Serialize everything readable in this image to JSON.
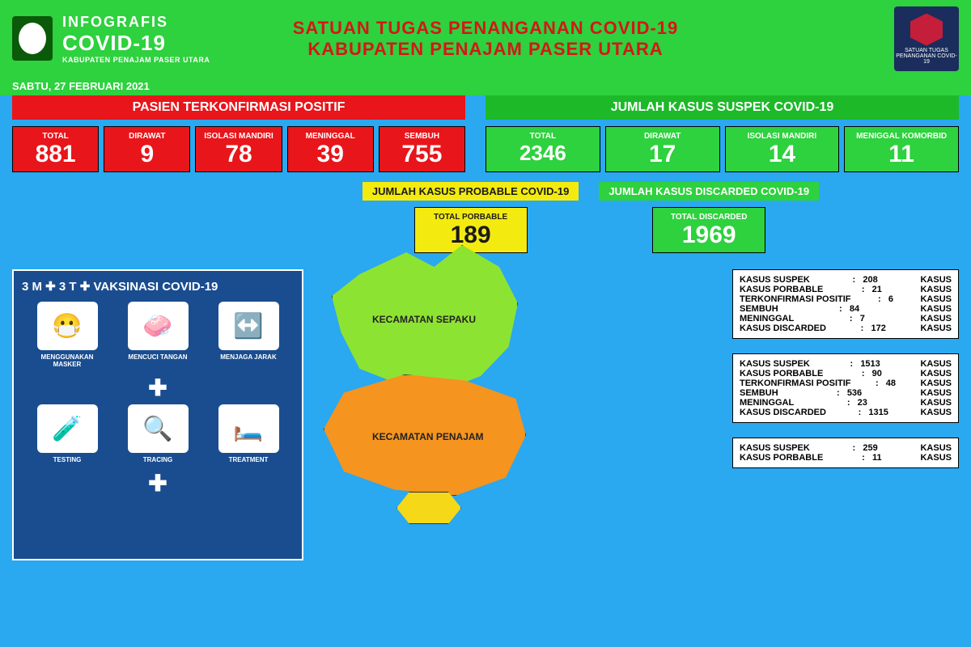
{
  "header": {
    "logo_title1": "INFOGRAFIS",
    "logo_title2": "COVID-19",
    "logo_sub": "KABUPATEN PENAJAM PASER UTARA",
    "center_l1": "SATUAN TUGAS PENANGANAN COVID-19",
    "center_l2": "KABUPATEN PENAJAM PASER UTARA",
    "right_label": "SATUAN TUGAS PENANGANAN COVID-19"
  },
  "date": "SABTU, 27 FEBRUARI 2021",
  "colors": {
    "bg": "#2aa8f0",
    "green": "#2ed13e",
    "red": "#e8151a",
    "yellow": "#f3eb0f",
    "darkblue": "#1a4d8f",
    "map_green": "#8de332",
    "map_orange": "#f5941f",
    "map_yellow": "#f5d817"
  },
  "confirmed": {
    "title": "PASIEN TERKONFIRMASI POSITIF",
    "boxes": [
      {
        "label": "TOTAL",
        "value": "881"
      },
      {
        "label": "DIRAWAT",
        "value": "9"
      },
      {
        "label": "ISOLASI MANDIRI",
        "value": "78"
      },
      {
        "label": "MENINGGAL",
        "value": "39"
      },
      {
        "label": "SEMBUH",
        "value": "755"
      }
    ]
  },
  "suspect": {
    "title": "JUMLAH KASUS SUSPEK COVID-19",
    "boxes": [
      {
        "label": "TOTAL",
        "value": "2346"
      },
      {
        "label": "DIRAWAT",
        "value": "17"
      },
      {
        "label": "ISOLASI MANDIRI",
        "value": "14"
      },
      {
        "label": "MENIGGAL KOMORBID",
        "value": "11"
      }
    ]
  },
  "probable": {
    "title": "JUMLAH KASUS PROBABLE COVID-19",
    "label": "TOTAL PORBABLE",
    "value": "189"
  },
  "discarded": {
    "title": "JUMLAH KASUS DISCARDED COVID-19",
    "label": "TOTAL DISCARDED",
    "value": "1969"
  },
  "protocol": {
    "title": "3 M ✚ 3 T ✚ VAKSINASI COVID-19",
    "row1": [
      {
        "icon": "😷",
        "label": "MENGGUNAKAN MASKER"
      },
      {
        "icon": "🧼",
        "label": "MENCUCI TANGAN"
      },
      {
        "icon": "↔️",
        "label": "MENJAGA JARAK"
      }
    ],
    "row2": [
      {
        "icon": "🧪",
        "label": "TESTING"
      },
      {
        "icon": "🔍",
        "label": "TRACING"
      },
      {
        "icon": "🛏️",
        "label": "TREATMENT"
      }
    ]
  },
  "map": {
    "region1": "KECAMATAN SEPAKU",
    "region2": "KECAMATAN PENAJAM"
  },
  "details": [
    {
      "rows": [
        {
          "k": "KASUS SUSPEK",
          "v": "208",
          "u": "KASUS"
        },
        {
          "k": "KASUS PORBABLE",
          "v": "21",
          "u": "KASUS"
        },
        {
          "k": "TERKONFIRMASI POSITIF",
          "v": "6",
          "u": "KASUS"
        },
        {
          "k": "SEMBUH",
          "v": "84",
          "u": "KASUS"
        },
        {
          "k": "MENINGGAL",
          "v": "7",
          "u": "KASUS"
        },
        {
          "k": "KASUS DISCARDED",
          "v": "172",
          "u": "KASUS"
        }
      ]
    },
    {
      "rows": [
        {
          "k": "KASUS SUSPEK",
          "v": "1513",
          "u": "KASUS"
        },
        {
          "k": "KASUS PORBABLE",
          "v": "90",
          "u": "KASUS"
        },
        {
          "k": "TERKONFIRMASI POSITIF",
          "v": "48",
          "u": "KASUS"
        },
        {
          "k": "SEMBUH",
          "v": "536",
          "u": "KASUS"
        },
        {
          "k": "MENINGGAL",
          "v": "23",
          "u": "KASUS"
        },
        {
          "k": "KASUS DISCARDED",
          "v": "1315",
          "u": "KASUS"
        }
      ]
    },
    {
      "rows": [
        {
          "k": "KASUS SUSPEK",
          "v": "259",
          "u": "KASUS"
        },
        {
          "k": "KASUS PORBABLE",
          "v": "11",
          "u": "KASUS"
        }
      ]
    }
  ]
}
